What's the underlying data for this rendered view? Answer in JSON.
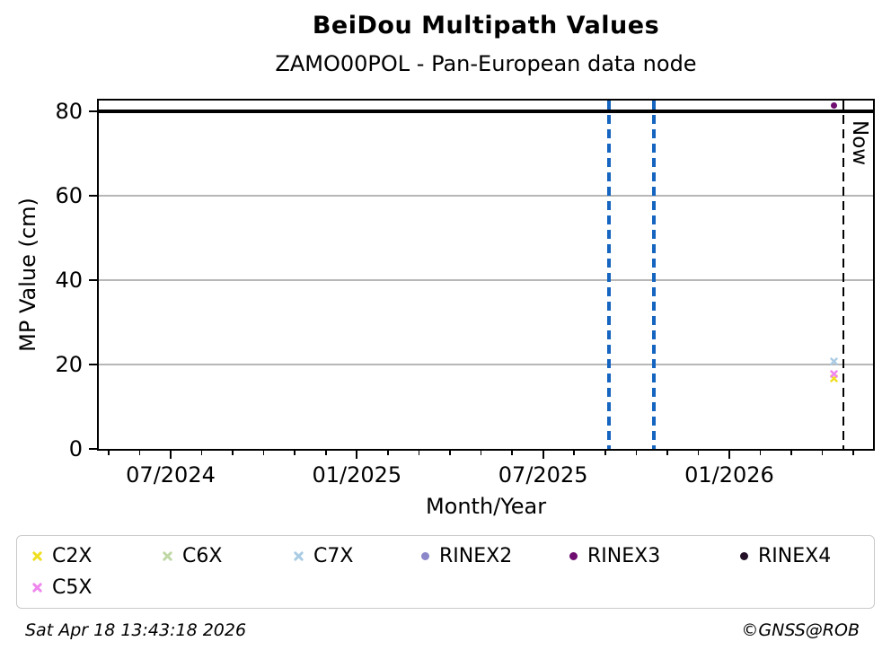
{
  "header": {
    "title": "BeiDou Multipath Values",
    "subtitle": "ZAMO00POL - Pan-European data node"
  },
  "footer": {
    "timestamp": "Sat Apr 18 13:43:18 2026",
    "credit": "©GNSS@ROB"
  },
  "chart_data": {
    "type": "scatter",
    "title": "BeiDou Multipath Values",
    "subtitle": "ZAMO00POL - Pan-European data node",
    "xlabel": "Month/Year",
    "ylabel": "MP Value (cm)",
    "x_unit": "decimal_year",
    "xlim": [
      2024.307,
      2026.386
    ],
    "ylim": [
      0,
      82.55
    ],
    "grid": true,
    "grid_color": "#b7b7b7",
    "gridlines_y": [
      20,
      40,
      60
    ],
    "threshold_line_y": 80,
    "threshold_color": "#000000",
    "yticks": [
      {
        "label": "0",
        "y": 0
      },
      {
        "label": "20",
        "y": 20
      },
      {
        "label": "40",
        "y": 40
      },
      {
        "label": "60",
        "y": 60
      },
      {
        "label": "80",
        "y": 80
      }
    ],
    "xticks_major": [
      {
        "label": "07/2024",
        "x": 2024.5
      },
      {
        "label": "01/2025",
        "x": 2025.0
      },
      {
        "label": "07/2025",
        "x": 2025.5
      },
      {
        "label": "01/2026",
        "x": 2026.0
      }
    ],
    "xticks_minor": [
      2024.3333,
      2024.4167,
      2024.5833,
      2024.6667,
      2024.75,
      2024.8333,
      2024.9167,
      2025.0833,
      2025.1667,
      2025.25,
      2025.3333,
      2025.4167,
      2025.5833,
      2025.6667,
      2025.75,
      2025.8333,
      2025.9167,
      2026.0833,
      2026.1667,
      2026.25,
      2026.3333
    ],
    "vlines": [
      {
        "x": 2025.677,
        "style": "dashed",
        "color": "#1565c0",
        "label": ""
      },
      {
        "x": 2025.797,
        "style": "dashed",
        "color": "#1565c0",
        "label": ""
      },
      {
        "x": 2026.306,
        "style": "dashed",
        "color": "#000000",
        "label": "Now"
      }
    ],
    "series": [
      {
        "name": "C2X",
        "color": "#f0df1f",
        "marker": "x",
        "points": [
          {
            "x": 2026.282,
            "y": 16.7
          }
        ]
      },
      {
        "name": "C6X",
        "color": "#bfd8a5",
        "marker": "x",
        "points": []
      },
      {
        "name": "C7X",
        "color": "#a9cbe3",
        "marker": "x",
        "points": [
          {
            "x": 2026.282,
            "y": 20.8
          }
        ]
      },
      {
        "name": "RINEX2",
        "color": "#8b87c8",
        "marker": "circle",
        "points": []
      },
      {
        "name": "RINEX3",
        "color": "#6f0d71",
        "marker": "circle",
        "points": [
          {
            "x": 2026.282,
            "y": 81.3
          }
        ]
      },
      {
        "name": "RINEX4",
        "color": "#241128",
        "marker": "circle",
        "points": []
      },
      {
        "name": "C5X",
        "color": "#ee86ee",
        "marker": "x",
        "points": [
          {
            "x": 2026.282,
            "y": 17.7
          }
        ]
      }
    ],
    "legend": {
      "position": "bottom",
      "order": [
        "C2X",
        "C6X",
        "C7X",
        "RINEX2",
        "RINEX3",
        "RINEX4",
        "C5X"
      ]
    }
  }
}
